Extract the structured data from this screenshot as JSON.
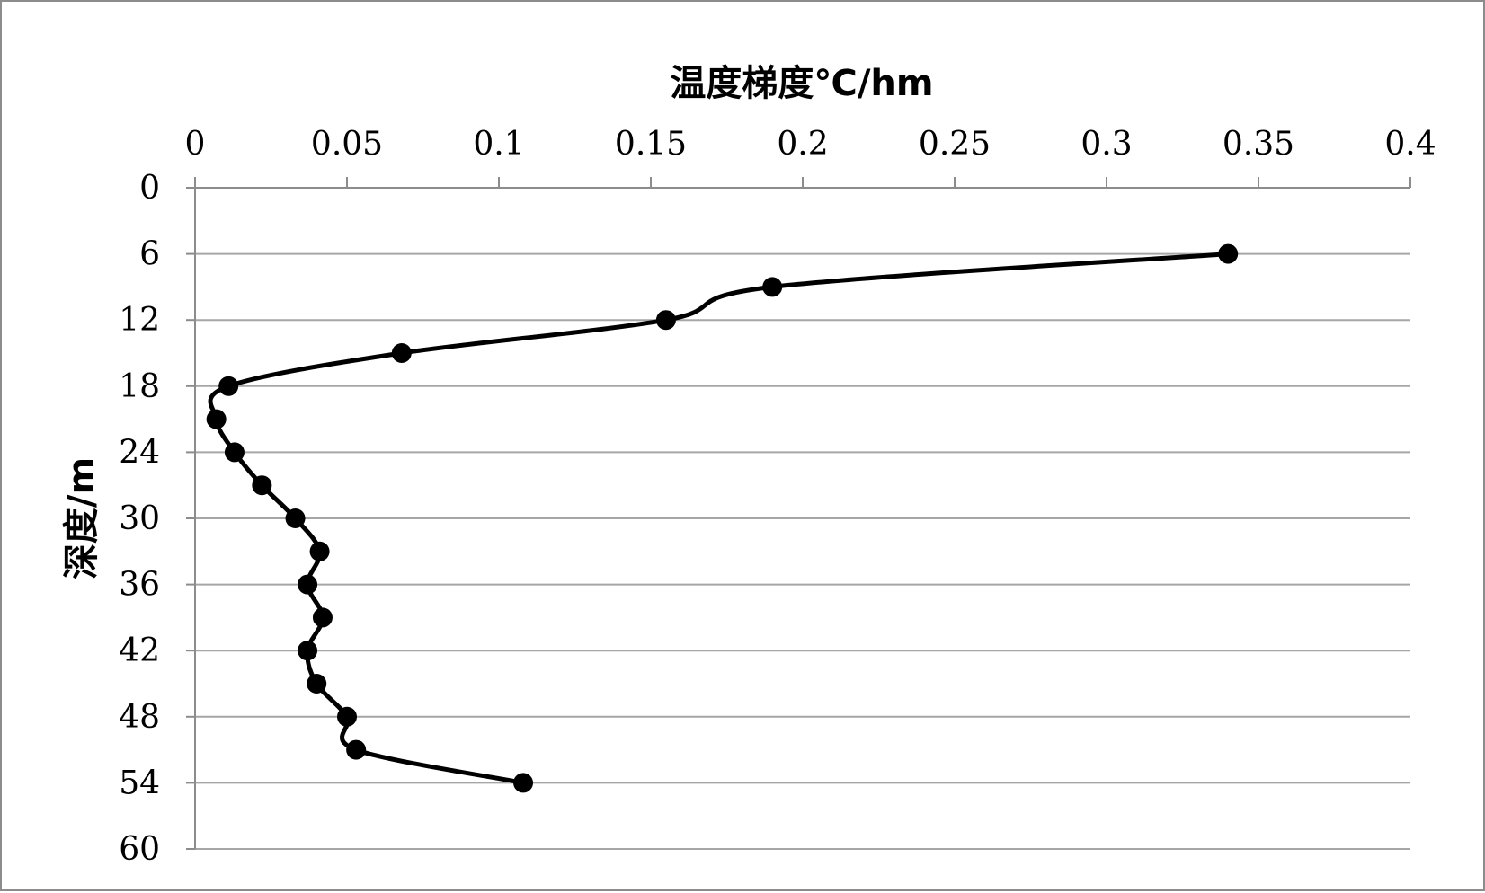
{
  "chart_data": {
    "type": "line",
    "xlabel": "温度梯度℃/hm",
    "ylabel": "深度/m",
    "xlim": [
      0,
      0.4
    ],
    "ylim": [
      0,
      60
    ],
    "y_inverted": true,
    "x_axis_position": "top",
    "x_ticks": [
      "0",
      "0.05",
      "0.1",
      "0.15",
      "0.2",
      "0.25",
      "0.3",
      "0.35",
      "0.4"
    ],
    "x_tick_values": [
      0,
      0.05,
      0.1,
      0.15,
      0.2,
      0.25,
      0.3,
      0.35,
      0.4
    ],
    "y_ticks": [
      "0",
      "6",
      "12",
      "18",
      "24",
      "30",
      "36",
      "42",
      "48",
      "54",
      "60"
    ],
    "y_tick_values": [
      0,
      6,
      12,
      18,
      24,
      30,
      36,
      42,
      48,
      54,
      60
    ],
    "grid": "horizontal",
    "smoothed": true,
    "line_color": "#000000",
    "grid_color": "#a6a6a6",
    "series": [
      {
        "points": [
          [
            0.34,
            6
          ],
          [
            0.19,
            9
          ],
          [
            0.155,
            12
          ],
          [
            0.068,
            15
          ],
          [
            0.011,
            18
          ],
          [
            0.007,
            21
          ],
          [
            0.013,
            24
          ],
          [
            0.022,
            27
          ],
          [
            0.033,
            30
          ],
          [
            0.041,
            33
          ],
          [
            0.037,
            36
          ],
          [
            0.042,
            39
          ],
          [
            0.037,
            42
          ],
          [
            0.04,
            45
          ],
          [
            0.05,
            48
          ],
          [
            0.053,
            51
          ],
          [
            0.108,
            54
          ]
        ]
      }
    ]
  }
}
